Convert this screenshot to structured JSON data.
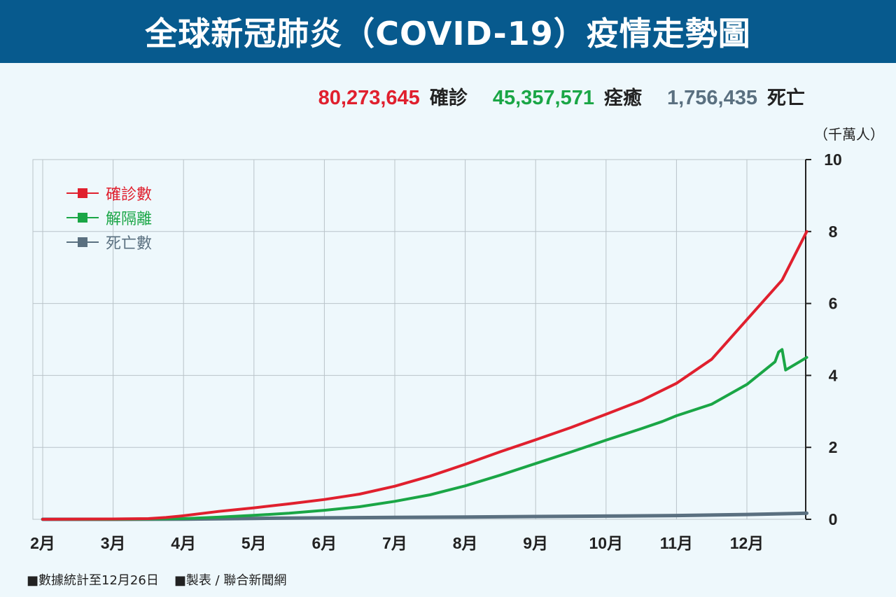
{
  "title": "全球新冠肺炎（COVID-19）疫情走勢圖",
  "summary": [
    {
      "value": "80,273,645",
      "label": "確診",
      "color": "#e0202e"
    },
    {
      "value": "45,357,571",
      "label": "痊癒",
      "color": "#1aa646"
    },
    {
      "value": "1,756,435",
      "label": "死亡",
      "color": "#5a7080"
    }
  ],
  "footer": {
    "note": "■數據統計至12月26日",
    "credit": "■製表 / 聯合新聞網"
  },
  "chart_data": {
    "type": "line",
    "unit_label": "（千萬人）",
    "categories": [
      "2月",
      "3月",
      "4月",
      "5月",
      "6月",
      "7月",
      "8月",
      "9月",
      "10月",
      "11月",
      "12月"
    ],
    "x_range": [
      0,
      10.85
    ],
    "ylim": [
      0,
      10
    ],
    "y_ticks": [
      "0",
      "2",
      "4",
      "6",
      "8",
      "10"
    ],
    "grid": true,
    "legend_position": "top-left",
    "series": [
      {
        "name": "確診數",
        "color": "#e0202e",
        "points": [
          [
            0,
            0
          ],
          [
            1,
            0.01
          ],
          [
            1.5,
            0.02
          ],
          [
            1.75,
            0.05
          ],
          [
            2,
            0.1
          ],
          [
            2.5,
            0.22
          ],
          [
            3,
            0.32
          ],
          [
            3.5,
            0.43
          ],
          [
            4,
            0.55
          ],
          [
            4.5,
            0.7
          ],
          [
            5,
            0.92
          ],
          [
            5.5,
            1.2
          ],
          [
            6,
            1.53
          ],
          [
            6.5,
            1.88
          ],
          [
            7,
            2.21
          ],
          [
            7.5,
            2.55
          ],
          [
            8,
            2.92
          ],
          [
            8.5,
            3.3
          ],
          [
            9,
            3.78
          ],
          [
            9.5,
            4.45
          ],
          [
            10,
            5.55
          ],
          [
            10.5,
            6.65
          ],
          [
            10.85,
            8.0
          ]
        ]
      },
      {
        "name": "解隔離",
        "color": "#1aa646",
        "points": [
          [
            0,
            0
          ],
          [
            1,
            0
          ],
          [
            2,
            0.02
          ],
          [
            2.5,
            0.06
          ],
          [
            3,
            0.11
          ],
          [
            3.5,
            0.17
          ],
          [
            4,
            0.25
          ],
          [
            4.5,
            0.35
          ],
          [
            5,
            0.5
          ],
          [
            5.5,
            0.68
          ],
          [
            6,
            0.93
          ],
          [
            6.5,
            1.23
          ],
          [
            7,
            1.55
          ],
          [
            7.5,
            1.87
          ],
          [
            8,
            2.2
          ],
          [
            8.5,
            2.52
          ],
          [
            8.8,
            2.72
          ],
          [
            9,
            2.88
          ],
          [
            9.5,
            3.2
          ],
          [
            10,
            3.75
          ],
          [
            10.4,
            4.38
          ],
          [
            10.45,
            4.65
          ],
          [
            10.5,
            4.72
          ],
          [
            10.55,
            4.15
          ],
          [
            10.85,
            4.5
          ]
        ]
      },
      {
        "name": "死亡數",
        "color": "#5a7080",
        "points": [
          [
            0,
            0
          ],
          [
            1,
            0
          ],
          [
            2,
            0.005
          ],
          [
            3,
            0.025
          ],
          [
            4,
            0.04
          ],
          [
            5,
            0.052
          ],
          [
            6,
            0.065
          ],
          [
            7,
            0.078
          ],
          [
            8,
            0.09
          ],
          [
            9,
            0.105
          ],
          [
            10,
            0.135
          ],
          [
            10.85,
            0.17
          ]
        ]
      }
    ]
  }
}
